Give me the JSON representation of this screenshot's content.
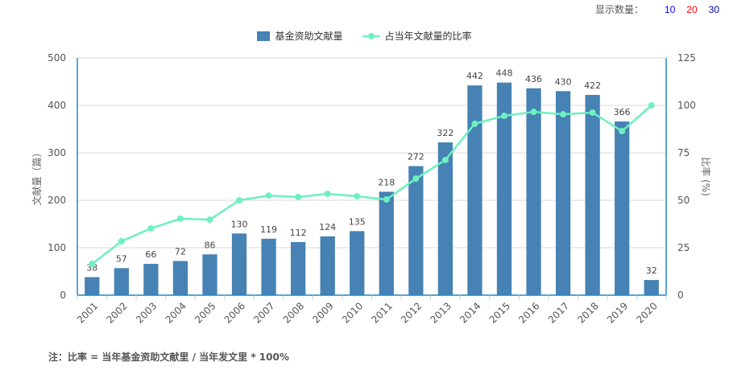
{
  "display_count": {
    "label": "显示数量：",
    "options": [
      {
        "value": "10",
        "color": "#0000ff"
      },
      {
        "value": "20",
        "color": "#ff0000"
      },
      {
        "value": "30",
        "color": "#0000aa"
      }
    ]
  },
  "note": "注：比率 = 当年基金资助文献里 / 当年发文里 * 100%",
  "chart_data": {
    "type": "bar",
    "title": "",
    "categories": [
      "2001",
      "2002",
      "2003",
      "2004",
      "2005",
      "2006",
      "2007",
      "2008",
      "2009",
      "2010",
      "2011",
      "2012",
      "2013",
      "2014",
      "2015",
      "2016",
      "2017",
      "2018",
      "2019",
      "2020"
    ],
    "series": [
      {
        "name": "基金资助文献量",
        "type": "bar",
        "axis": "left",
        "color": "#4682b4",
        "values": [
          38,
          57,
          66,
          72,
          86,
          130,
          119,
          112,
          124,
          135,
          218,
          272,
          322,
          442,
          448,
          436,
          430,
          422,
          366,
          32
        ],
        "data_labels": true
      },
      {
        "name": "占当年文献量的比率",
        "type": "line",
        "axis": "right",
        "color": "#6ef0c0",
        "values": [
          16.5,
          28.4,
          35.2,
          40.3,
          39.8,
          50.0,
          52.5,
          51.7,
          53.4,
          52.1,
          50.4,
          61.4,
          71.2,
          90.3,
          94.5,
          96.6,
          95.3,
          96.2,
          86.4,
          100.0
        ]
      }
    ],
    "y_left": {
      "label": "文献量（篇）",
      "range": [
        0,
        500
      ],
      "ticks": [
        0,
        100,
        200,
        300,
        400,
        500
      ]
    },
    "y_right": {
      "label": "比率 (%)",
      "range": [
        0,
        125
      ],
      "ticks": [
        0,
        25,
        50,
        75,
        100,
        125
      ]
    },
    "xlabel": "",
    "grid": true,
    "legend_position": "top-center"
  }
}
